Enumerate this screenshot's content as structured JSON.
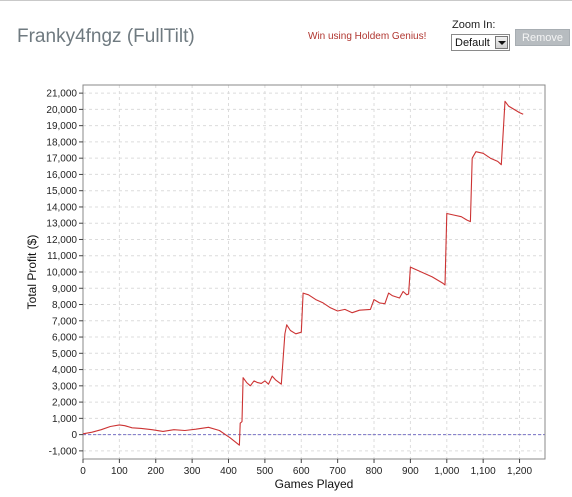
{
  "header": {
    "title": "Franky4fngz (FullTilt)",
    "promo_link": "Win using Holdem Genius!",
    "zoom_label": "Zoom In:",
    "zoom_value": "Default",
    "remove_label": "Remove"
  },
  "chart_data": {
    "type": "line",
    "xlabel": "Games Played",
    "ylabel": "Total Profit ($)",
    "xlim": [
      0,
      1270
    ],
    "ylim": [
      -1500,
      21500
    ],
    "xticks": [
      0,
      100,
      200,
      300,
      400,
      500,
      600,
      700,
      800,
      900,
      1000,
      1100,
      1200
    ],
    "xtick_labels": [
      "0",
      "100",
      "200",
      "300",
      "400",
      "500",
      "600",
      "700",
      "800",
      "900",
      "1,000",
      "1,100",
      "1,200"
    ],
    "yticks": [
      -1000,
      0,
      1000,
      2000,
      3000,
      4000,
      5000,
      6000,
      7000,
      8000,
      9000,
      10000,
      11000,
      12000,
      13000,
      14000,
      15000,
      16000,
      17000,
      18000,
      19000,
      20000,
      21000
    ],
    "ytick_labels": [
      "-1,000",
      "0",
      "1,000",
      "2,000",
      "3,000",
      "4,000",
      "5,000",
      "6,000",
      "7,000",
      "8,000",
      "9,000",
      "10,000",
      "11,000",
      "12,000",
      "13,000",
      "14,000",
      "15,000",
      "16,000",
      "17,000",
      "18,000",
      "19,000",
      "20,000",
      "21,000"
    ],
    "grid": true,
    "zero_line": true,
    "line_color": "#cc3333",
    "zero_line_color": "#7a73c8",
    "series": [
      {
        "x": [
          0,
          25,
          50,
          75,
          100,
          115,
          135,
          160,
          190,
          220,
          250,
          280,
          310,
          345,
          375,
          405,
          430,
          432,
          437,
          440,
          450,
          460,
          470,
          480,
          490,
          500,
          510,
          520,
          530,
          545,
          555,
          560,
          570,
          585,
          600,
          605,
          620,
          640,
          660,
          680,
          700,
          720,
          740,
          760,
          790,
          800,
          815,
          830,
          840,
          850,
          870,
          880,
          890,
          895,
          900,
          930,
          960,
          990,
          995,
          1000,
          1020,
          1040,
          1055,
          1065,
          1070,
          1080,
          1100,
          1120,
          1140,
          1150,
          1160,
          1170,
          1185,
          1200,
          1210
        ],
        "y": [
          50,
          150,
          300,
          500,
          600,
          550,
          420,
          380,
          300,
          200,
          300,
          250,
          330,
          450,
          250,
          -200,
          -650,
          700,
          800,
          3500,
          3200,
          3000,
          3300,
          3200,
          3150,
          3300,
          3100,
          3600,
          3350,
          3100,
          6200,
          6750,
          6400,
          6200,
          6300,
          8700,
          8600,
          8300,
          8100,
          7800,
          7600,
          7700,
          7500,
          7650,
          7700,
          8300,
          8100,
          8050,
          8700,
          8550,
          8400,
          8800,
          8600,
          8650,
          10300,
          10000,
          9700,
          9300,
          9200,
          13600,
          13500,
          13400,
          13200,
          13100,
          17000,
          17400,
          17300,
          17000,
          16800,
          16600,
          20500,
          20200,
          20000,
          19800,
          19700
        ]
      }
    ]
  }
}
